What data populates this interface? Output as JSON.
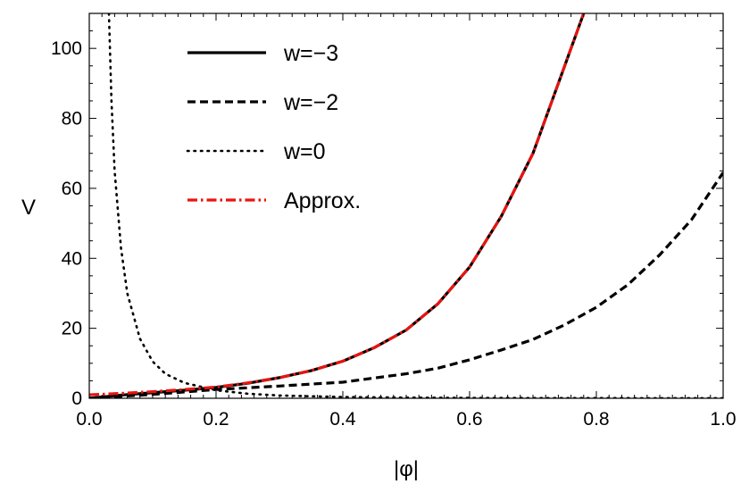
{
  "chart_data": {
    "type": "line",
    "xlabel": "|φ|",
    "ylabel": "V",
    "xlim": [
      0,
      1.0
    ],
    "ylim": [
      0,
      110
    ],
    "x_ticks": [
      "0.0",
      "0.2",
      "0.4",
      "0.6",
      "0.8",
      "1.0"
    ],
    "y_ticks": [
      "0",
      "20",
      "40",
      "60",
      "80",
      "100"
    ],
    "grid": false,
    "legend": "top-left",
    "series": [
      {
        "name": "w=−3",
        "style": "solid",
        "color": "#000000",
        "x": [
          0.0,
          0.05,
          0.1,
          0.15,
          0.2,
          0.25,
          0.3,
          0.35,
          0.4,
          0.45,
          0.5,
          0.55,
          0.6,
          0.65,
          0.7,
          0.75,
          0.78
        ],
        "y": [
          0.0,
          0.9,
          1.6,
          2.3,
          3.1,
          4.3,
          5.9,
          7.9,
          10.6,
          14.5,
          19.5,
          27.0,
          37.5,
          52.0,
          70.0,
          95.0,
          110.0
        ]
      },
      {
        "name": "w=−2",
        "style": "dashed",
        "color": "#000000",
        "x": [
          0.0,
          0.1,
          0.2,
          0.3,
          0.4,
          0.5,
          0.55,
          0.6,
          0.65,
          0.7,
          0.75,
          0.8,
          0.85,
          0.9,
          0.95,
          1.0
        ],
        "y": [
          0.0,
          1.1,
          2.5,
          3.5,
          4.6,
          7.0,
          8.6,
          11.0,
          13.8,
          16.8,
          21.0,
          26.0,
          32.5,
          41.0,
          51.0,
          64.5
        ]
      },
      {
        "name": "w=0",
        "style": "dotted",
        "color": "#000000",
        "x": [
          0.031,
          0.035,
          0.04,
          0.05,
          0.06,
          0.08,
          0.1,
          0.12,
          0.15,
          0.2,
          0.25,
          0.3,
          0.4,
          0.5,
          0.6,
          0.7,
          0.8,
          0.9,
          1.0
        ],
        "y": [
          110,
          85.0,
          65.0,
          43.0,
          30.0,
          17.0,
          10.5,
          7.0,
          4.4,
          2.3,
          1.3,
          0.8,
          0.35,
          0.18,
          0.1,
          0.06,
          0.04,
          0.03,
          0.02
        ]
      },
      {
        "name": "Approx.",
        "style": "dash-dot",
        "color": "#e8150f",
        "x": [
          0.0,
          0.05,
          0.1,
          0.15,
          0.2,
          0.25,
          0.3,
          0.35,
          0.4,
          0.45,
          0.5,
          0.55,
          0.6,
          0.65,
          0.7,
          0.75,
          0.78
        ],
        "y": [
          1.0,
          1.4,
          1.9,
          2.5,
          3.2,
          4.4,
          5.9,
          7.9,
          10.6,
          14.5,
          19.5,
          27.0,
          37.5,
          52.0,
          70.0,
          95.0,
          110.0
        ]
      }
    ]
  }
}
